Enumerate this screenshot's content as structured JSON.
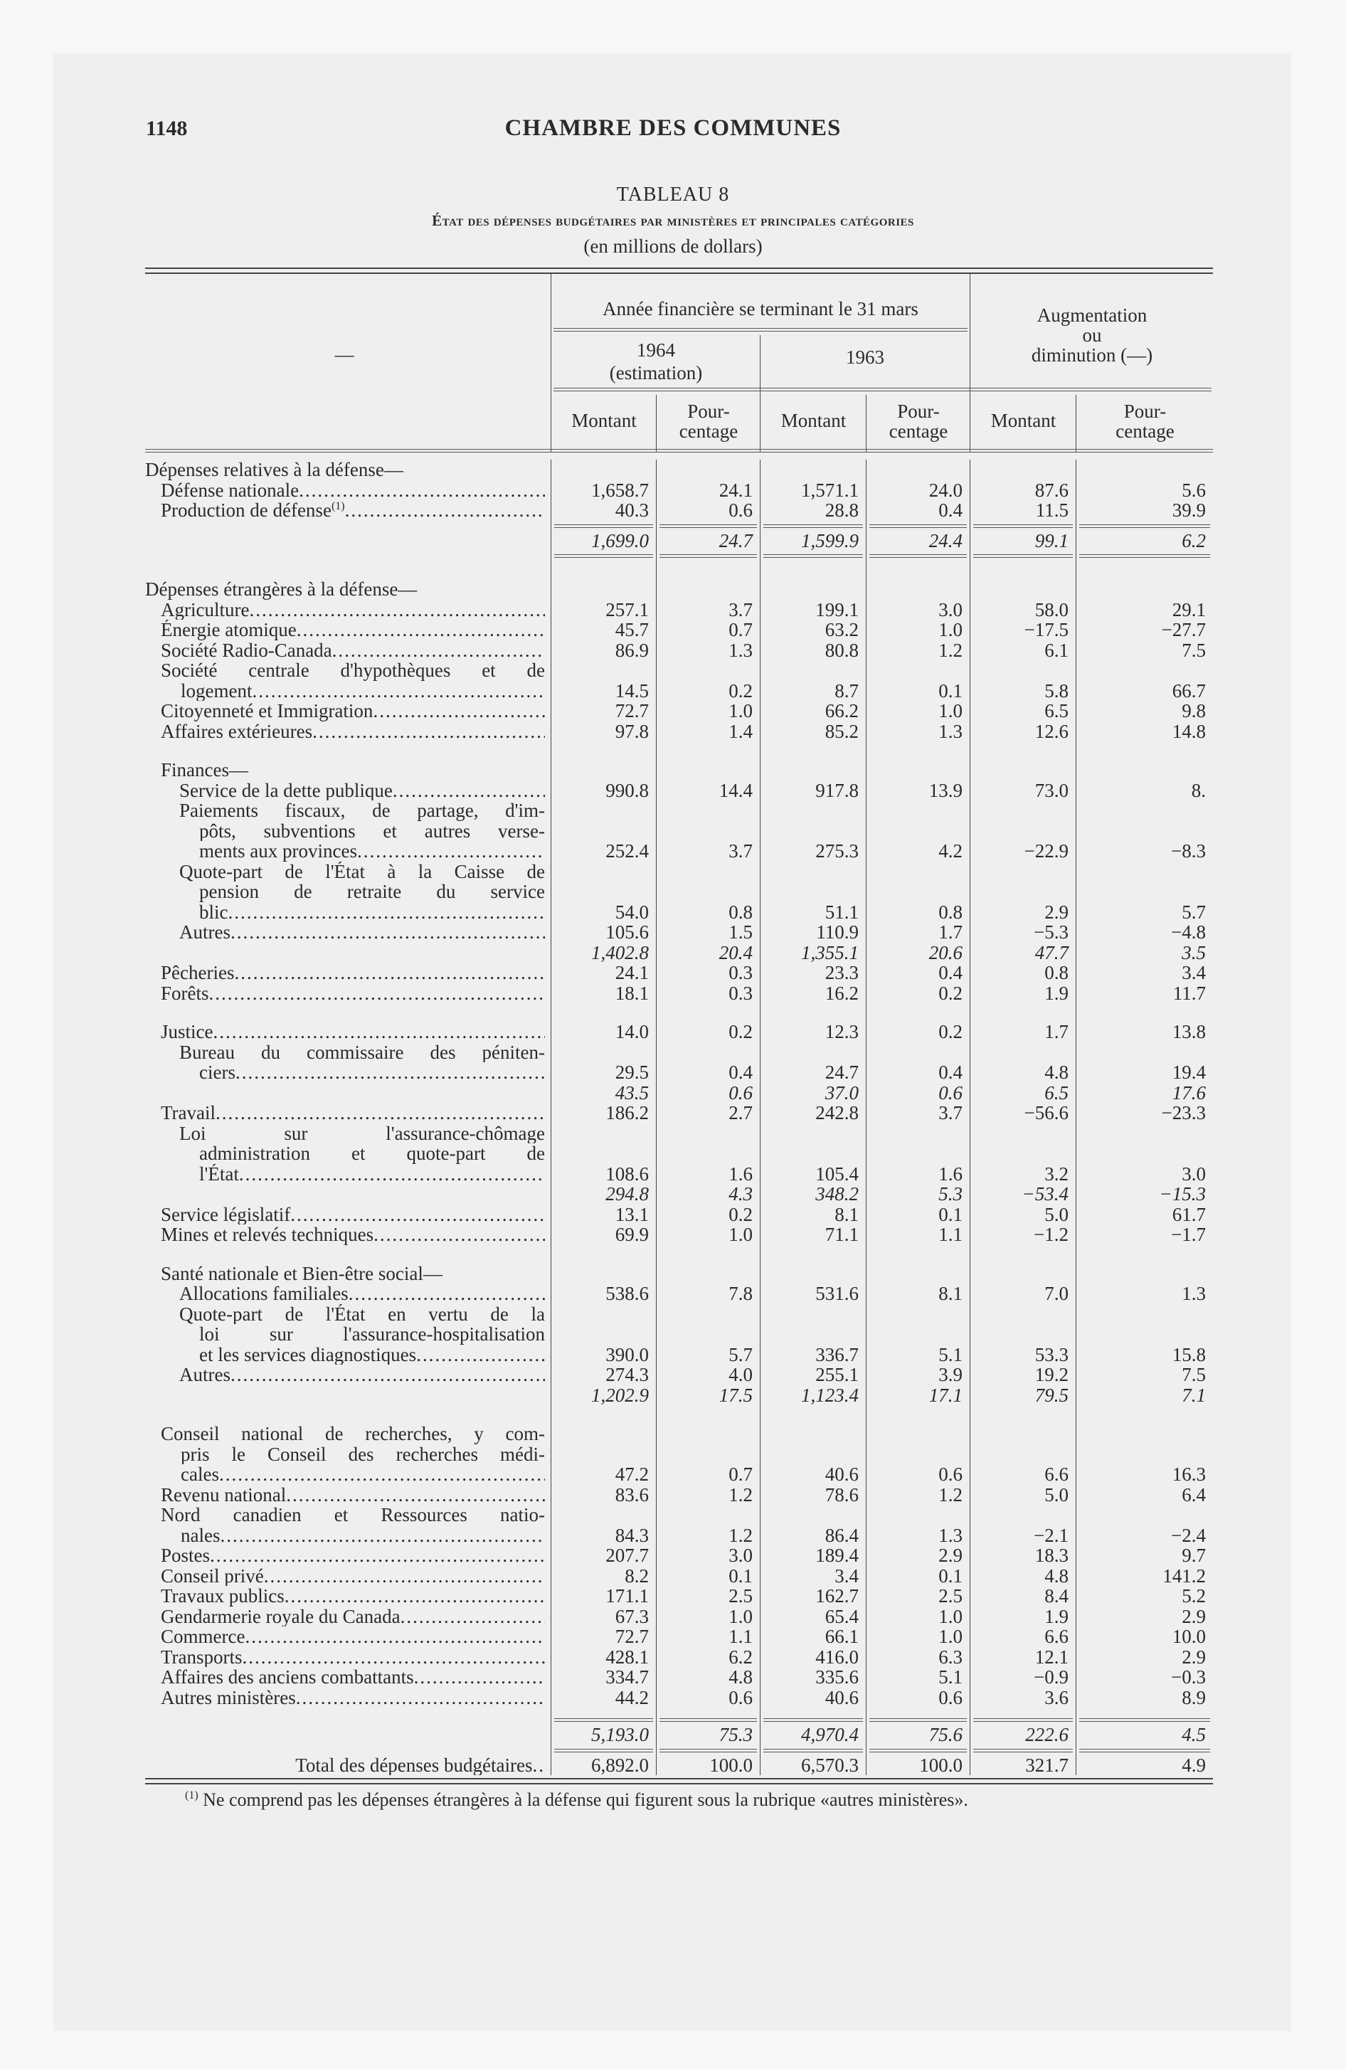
{
  "page": {
    "page_number": "1148",
    "running_head": "CHAMBRE DES COMMUNES",
    "table_number": "TABLEAU 8",
    "table_title": "État des dépenses budgétaires par ministères et principales catégories",
    "table_unit": "(en millions de dollars)"
  },
  "header": {
    "stub": "—",
    "fiscal_year": "Année financière se terminant le 31 mars",
    "year_1964": "1964",
    "year_1964_note": "(estimation)",
    "year_1963": "1963",
    "change_line1": "Augmentation",
    "change_line2": "ou",
    "change_line3": "diminution (—)",
    "amount": "Montant",
    "pct_line1": "Pour-",
    "pct_line2": "centage"
  },
  "rows": [
    {
      "type": "section",
      "indent": 0,
      "lines": [
        "Dépenses relatives à la défense—"
      ]
    },
    {
      "type": "item",
      "indent": 1,
      "lines": [
        "Défense nationale"
      ],
      "values": [
        "1,658.7",
        "24.1",
        "1,571.1",
        "24.0",
        "87.6",
        "5.6"
      ]
    },
    {
      "type": "item",
      "indent": 1,
      "lines": [
        "Production de défense"
      ],
      "sup": "(1)",
      "values": [
        "40.3",
        "0.6",
        "28.8",
        "0.4",
        "11.5",
        "39.9"
      ]
    },
    {
      "type": "rule"
    },
    {
      "type": "subtotal",
      "values": [
        "1,699.0",
        "24.7",
        "1,599.9",
        "24.4",
        "99.1",
        "6.2"
      ]
    },
    {
      "type": "rule"
    },
    {
      "type": "gap"
    },
    {
      "type": "section",
      "indent": 0,
      "lines": [
        "Dépenses étrangères à la défense—"
      ]
    },
    {
      "type": "item",
      "indent": 1,
      "lines": [
        "Agriculture"
      ],
      "values": [
        "257.1",
        "3.7",
        "199.1",
        "3.0",
        "58.0",
        "29.1"
      ]
    },
    {
      "type": "item",
      "indent": 1,
      "lines": [
        "Énergie atomique"
      ],
      "values": [
        "45.7",
        "0.7",
        "63.2",
        "1.0",
        "−17.5",
        "−27.7"
      ]
    },
    {
      "type": "item",
      "indent": 1,
      "lines": [
        "Société Radio-Canada"
      ],
      "values": [
        "86.9",
        "1.3",
        "80.8",
        "1.2",
        "6.1",
        "7.5"
      ]
    },
    {
      "type": "item",
      "indent": 1,
      "lines": [
        "Société centrale d'hypothèques et de",
        "logement"
      ],
      "values": [
        "14.5",
        "0.2",
        "8.7",
        "0.1",
        "5.8",
        "66.7"
      ]
    },
    {
      "type": "item",
      "indent": 1,
      "lines": [
        "Citoyenneté et Immigration"
      ],
      "values": [
        "72.7",
        "1.0",
        "66.2",
        "1.0",
        "6.5",
        "9.8"
      ]
    },
    {
      "type": "item",
      "indent": 1,
      "lines": [
        "Affaires extérieures"
      ],
      "values": [
        "97.8",
        "1.4",
        "85.2",
        "1.3",
        "12.6",
        "14.8"
      ]
    },
    {
      "type": "gap"
    },
    {
      "type": "section",
      "indent": 1,
      "lines": [
        "Finances—"
      ]
    },
    {
      "type": "item",
      "indent": 2,
      "lines": [
        "Service de la dette publique"
      ],
      "values": [
        "990.8",
        "14.4",
        "917.8",
        "13.9",
        "73.0",
        "8."
      ]
    },
    {
      "type": "item",
      "indent": 2,
      "lines": [
        "Paiements fiscaux, de partage, d'im-",
        "pôts, subventions et autres verse-",
        "ments aux provinces"
      ],
      "values": [
        "252.4",
        "3.7",
        "275.3",
        "4.2",
        "−22.9",
        "−8.3"
      ]
    },
    {
      "type": "item",
      "indent": 2,
      "lines": [
        "Quote-part de l'État à la Caisse de",
        "pension de retraite du service",
        "blic"
      ],
      "values": [
        "54.0",
        "0.8",
        "51.1",
        "0.8",
        "2.9",
        "5.7"
      ]
    },
    {
      "type": "item",
      "indent": 2,
      "lines": [
        "Autres"
      ],
      "values": [
        "105.6",
        "1.5",
        "110.9",
        "1.7",
        "−5.3",
        "−4.8"
      ]
    },
    {
      "type": "subtotal",
      "values": [
        "1,402.8",
        "20.4",
        "1,355.1",
        "20.6",
        "47.7",
        "3.5"
      ]
    },
    {
      "type": "item",
      "indent": 1,
      "lines": [
        "Pêcheries"
      ],
      "values": [
        "24.1",
        "0.3",
        "23.3",
        "0.4",
        "0.8",
        "3.4"
      ]
    },
    {
      "type": "item",
      "indent": 1,
      "lines": [
        "Forêts"
      ],
      "values": [
        "18.1",
        "0.3",
        "16.2",
        "0.2",
        "1.9",
        "11.7"
      ]
    },
    {
      "type": "gap"
    },
    {
      "type": "item",
      "indent": 1,
      "lines": [
        "Justice"
      ],
      "values": [
        "14.0",
        "0.2",
        "12.3",
        "0.2",
        "1.7",
        "13.8"
      ]
    },
    {
      "type": "item",
      "indent": 2,
      "lines": [
        "Bureau du commissaire des péniten-",
        "ciers"
      ],
      "values": [
        "29.5",
        "0.4",
        "24.7",
        "0.4",
        "4.8",
        "19.4"
      ]
    },
    {
      "type": "subtotal",
      "values": [
        "43.5",
        "0.6",
        "37.0",
        "0.6",
        "6.5",
        "17.6"
      ]
    },
    {
      "type": "item",
      "indent": 1,
      "lines": [
        "Travail"
      ],
      "values": [
        "186.2",
        "2.7",
        "242.8",
        "3.7",
        "−56.6",
        "−23.3"
      ]
    },
    {
      "type": "item",
      "indent": 2,
      "lines": [
        "Loi sur l'assurance-chômage",
        "administration et quote-part de",
        "l'État"
      ],
      "values": [
        "108.6",
        "1.6",
        "105.4",
        "1.6",
        "3.2",
        "3.0"
      ]
    },
    {
      "type": "subtotal",
      "values": [
        "294.8",
        "4.3",
        "348.2",
        "5.3",
        "−53.4",
        "−15.3"
      ]
    },
    {
      "type": "item",
      "indent": 1,
      "lines": [
        "Service législatif"
      ],
      "values": [
        "13.1",
        "0.2",
        "8.1",
        "0.1",
        "5.0",
        "61.7"
      ]
    },
    {
      "type": "item",
      "indent": 1,
      "lines": [
        "Mines et relevés techniques"
      ],
      "values": [
        "69.9",
        "1.0",
        "71.1",
        "1.1",
        "−1.2",
        "−1.7"
      ]
    },
    {
      "type": "gap"
    },
    {
      "type": "section",
      "indent": 1,
      "lines": [
        "Santé nationale et Bien-être social—"
      ]
    },
    {
      "type": "item",
      "indent": 2,
      "lines": [
        "Allocations familiales"
      ],
      "values": [
        "538.6",
        "7.8",
        "531.6",
        "8.1",
        "7.0",
        "1.3"
      ]
    },
    {
      "type": "item",
      "indent": 2,
      "lines": [
        "Quote-part de l'État en vertu de la",
        "loi sur l'assurance-hospitalisation",
        "et les services diagnostiques"
      ],
      "values": [
        "390.0",
        "5.7",
        "336.7",
        "5.1",
        "53.3",
        "15.8"
      ]
    },
    {
      "type": "item",
      "indent": 2,
      "lines": [
        "Autres"
      ],
      "values": [
        "274.3",
        "4.0",
        "255.1",
        "3.9",
        "19.2",
        "7.5"
      ]
    },
    {
      "type": "subtotal",
      "values": [
        "1,202.9",
        "17.5",
        "1,123.4",
        "17.1",
        "79.5",
        "7.1"
      ]
    },
    {
      "type": "gap"
    },
    {
      "type": "item",
      "indent": 1,
      "lines": [
        "Conseil national de recherches, y com-",
        "pris le Conseil des recherches médi-",
        "cales"
      ],
      "values": [
        "47.2",
        "0.7",
        "40.6",
        "0.6",
        "6.6",
        "16.3"
      ]
    },
    {
      "type": "item",
      "indent": 1,
      "lines": [
        "Revenu national"
      ],
      "values": [
        "83.6",
        "1.2",
        "78.6",
        "1.2",
        "5.0",
        "6.4"
      ]
    },
    {
      "type": "item",
      "indent": 1,
      "lines": [
        "Nord canadien et Ressources natio-",
        "nales"
      ],
      "values": [
        "84.3",
        "1.2",
        "86.4",
        "1.3",
        "−2.1",
        "−2.4"
      ]
    },
    {
      "type": "item",
      "indent": 1,
      "lines": [
        "Postes"
      ],
      "values": [
        "207.7",
        "3.0",
        "189.4",
        "2.9",
        "18.3",
        "9.7"
      ]
    },
    {
      "type": "item",
      "indent": 1,
      "lines": [
        "Conseil privé"
      ],
      "values": [
        "8.2",
        "0.1",
        "3.4",
        "0.1",
        "4.8",
        "141.2"
      ]
    },
    {
      "type": "item",
      "indent": 1,
      "lines": [
        "Travaux publics"
      ],
      "values": [
        "171.1",
        "2.5",
        "162.7",
        "2.5",
        "8.4",
        "5.2"
      ]
    },
    {
      "type": "item",
      "indent": 1,
      "lines": [
        "Gendarmerie royale du Canada"
      ],
      "values": [
        "67.3",
        "1.0",
        "65.4",
        "1.0",
        "1.9",
        "2.9"
      ]
    },
    {
      "type": "item",
      "indent": 1,
      "lines": [
        "Commerce"
      ],
      "values": [
        "72.7",
        "1.1",
        "66.1",
        "1.0",
        "6.6",
        "10.0"
      ]
    },
    {
      "type": "item",
      "indent": 1,
      "lines": [
        "Transports"
      ],
      "values": [
        "428.1",
        "6.2",
        "416.0",
        "6.3",
        "12.1",
        "2.9"
      ]
    },
    {
      "type": "item",
      "indent": 1,
      "lines": [
        "Affaires des anciens combattants"
      ],
      "values": [
        "334.7",
        "4.8",
        "335.6",
        "5.1",
        "−0.9",
        "−0.3"
      ]
    },
    {
      "type": "item",
      "indent": 1,
      "lines": [
        "Autres ministères"
      ],
      "values": [
        "44.2",
        "0.6",
        "40.6",
        "0.6",
        "3.6",
        "8.9"
      ]
    },
    {
      "type": "gapsmall"
    },
    {
      "type": "rule"
    },
    {
      "type": "subtotal",
      "values": [
        "5,193.0",
        "75.3",
        "4,970.4",
        "75.6",
        "222.6",
        "4.5"
      ]
    },
    {
      "type": "rule"
    },
    {
      "type": "total",
      "lines": [
        "Total des dépenses budgétaires"
      ],
      "values": [
        "6,892.0",
        "100.0",
        "6,570.3",
        "100.0",
        "321.7",
        "4.9"
      ]
    }
  ],
  "footnote": {
    "marker": "(1)",
    "text": "Ne comprend pas les dépenses étrangères à la défense qui figurent sous la rubrique «autres ministères»."
  }
}
